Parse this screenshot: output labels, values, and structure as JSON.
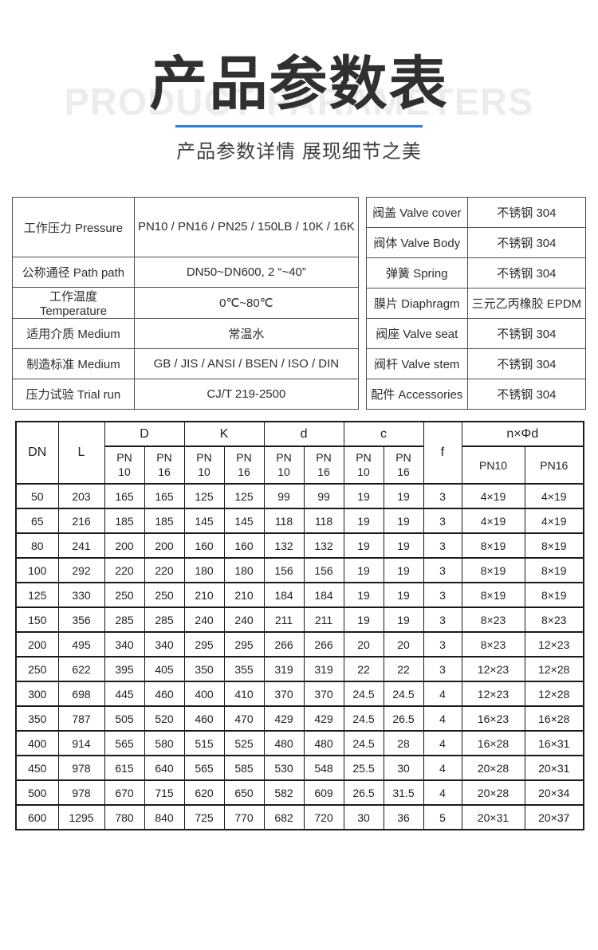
{
  "page": {
    "watermark": "PRODUCT PARAMETERS",
    "title": "产品参数表",
    "subtitle": "产品参数详情 展现细节之美"
  },
  "colors": {
    "accent_blue": "#2e7de0",
    "title_dark": "#303030",
    "watermark_gray": "#ececec",
    "table_border_dark": "#1a1a1a",
    "table_border_gray": "#4f4f4f"
  },
  "spec_table_left": {
    "rows": [
      {
        "label": "工作压力  Pressure",
        "value": "PN10 / PN16 / PN25 / 150LB / 10K / 16K"
      },
      {
        "label": "公称通径  Path path",
        "value": "DN50~DN600, 2 “~40”"
      },
      {
        "label": "工作温度  Temperature",
        "value": "0℃~80℃"
      },
      {
        "label": "适用介质  Medium",
        "value": "常温水"
      },
      {
        "label": "制造标准  Medium",
        "value": "GB / JIS / ANSI / BSEN / ISO / DIN"
      },
      {
        "label": "压力试验  Trial run",
        "value": "CJ/T 219-2500"
      }
    ]
  },
  "spec_table_right": {
    "rows": [
      {
        "label": "阀盖  Valve cover",
        "value": "不锈钢  304"
      },
      {
        "label": "阀体  Valve Body",
        "value": "不锈钢  304"
      },
      {
        "label": "弹簧  Spring",
        "value": "不锈钢  304"
      },
      {
        "label": "膜片  Diaphragm",
        "value": "三元乙丙橡胶  EPDM"
      },
      {
        "label": "阀座  Valve seat",
        "value": "不锈钢  304"
      },
      {
        "label": "阀杆  Valve stem",
        "value": "不锈钢  304"
      },
      {
        "label": "配件  Accessories",
        "value": "不锈钢  304"
      }
    ]
  },
  "dimension_table": {
    "header": {
      "dn": "DN",
      "l": "L",
      "big_d": "D",
      "k": "K",
      "small_d": "d",
      "c": "c",
      "f": "f",
      "n_phi_d": "n×Φd",
      "pn10": "PN10",
      "pn16": "PN16"
    },
    "rows": [
      [
        "50",
        "203",
        "165",
        "165",
        "125",
        "125",
        "99",
        "99",
        "19",
        "19",
        "3",
        "4×19",
        "4×19"
      ],
      [
        "65",
        "216",
        "185",
        "185",
        "145",
        "145",
        "118",
        "118",
        "19",
        "19",
        "3",
        "4×19",
        "4×19"
      ],
      [
        "80",
        "241",
        "200",
        "200",
        "160",
        "160",
        "132",
        "132",
        "19",
        "19",
        "3",
        "8×19",
        "8×19"
      ],
      [
        "100",
        "292",
        "220",
        "220",
        "180",
        "180",
        "156",
        "156",
        "19",
        "19",
        "3",
        "8×19",
        "8×19"
      ],
      [
        "125",
        "330",
        "250",
        "250",
        "210",
        "210",
        "184",
        "184",
        "19",
        "19",
        "3",
        "8×19",
        "8×19"
      ],
      [
        "150",
        "356",
        "285",
        "285",
        "240",
        "240",
        "211",
        "211",
        "19",
        "19",
        "3",
        "8×23",
        "8×23"
      ],
      [
        "200",
        "495",
        "340",
        "340",
        "295",
        "295",
        "266",
        "266",
        "20",
        "20",
        "3",
        "8×23",
        "12×23"
      ],
      [
        "250",
        "622",
        "395",
        "405",
        "350",
        "355",
        "319",
        "319",
        "22",
        "22",
        "3",
        "12×23",
        "12×28"
      ],
      [
        "300",
        "698",
        "445",
        "460",
        "400",
        "410",
        "370",
        "370",
        "24.5",
        "24.5",
        "4",
        "12×23",
        "12×28"
      ],
      [
        "350",
        "787",
        "505",
        "520",
        "460",
        "470",
        "429",
        "429",
        "24.5",
        "26.5",
        "4",
        "16×23",
        "16×28"
      ],
      [
        "400",
        "914",
        "565",
        "580",
        "515",
        "525",
        "480",
        "480",
        "24.5",
        "28",
        "4",
        "16×28",
        "16×31"
      ],
      [
        "450",
        "978",
        "615",
        "640",
        "565",
        "585",
        "530",
        "548",
        "25.5",
        "30",
        "4",
        "20×28",
        "20×31"
      ],
      [
        "500",
        "978",
        "670",
        "715",
        "620",
        "650",
        "582",
        "609",
        "26.5",
        "31.5",
        "4",
        "20×28",
        "20×34"
      ],
      [
        "600",
        "1295",
        "780",
        "840",
        "725",
        "770",
        "682",
        "720",
        "30",
        "36",
        "5",
        "20×31",
        "20×37"
      ]
    ]
  }
}
